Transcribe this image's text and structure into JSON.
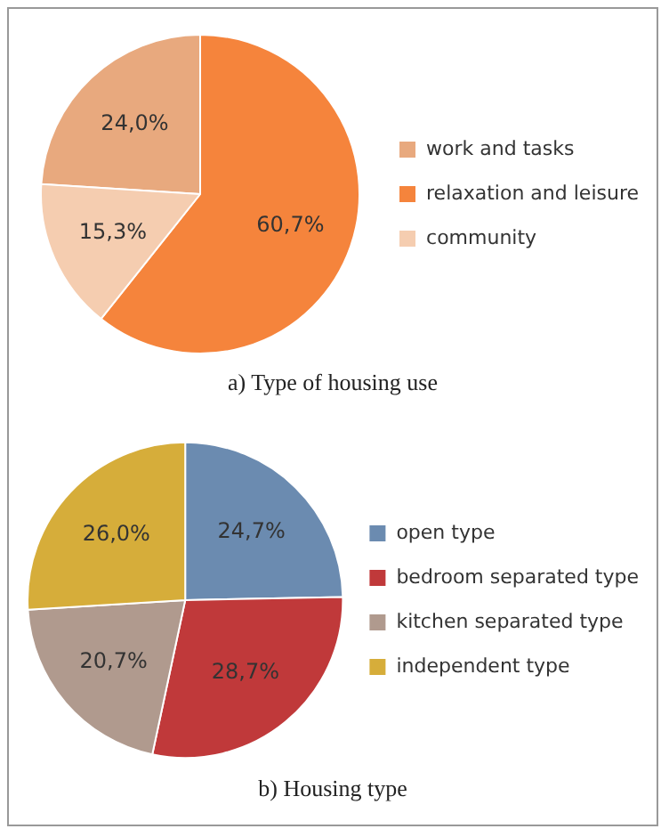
{
  "chart_data": [
    {
      "type": "pie",
      "title": "a) Type of housing use",
      "categories": [
        "work and tasks",
        "relaxation and leisure",
        "community"
      ],
      "values": [
        24.0,
        60.7,
        15.3
      ],
      "colors": [
        "#e8a97e",
        "#f5843c",
        "#f5cdb0"
      ],
      "value_labels": [
        "24,0%",
        "60,7%",
        "15,3%"
      ],
      "legend": "right"
    },
    {
      "type": "pie",
      "title": "b) Housing type",
      "categories": [
        "open type",
        "bedroom separated type",
        "kitchen separated type",
        "independent type"
      ],
      "values": [
        24.7,
        28.7,
        20.7,
        26.0
      ],
      "colors": [
        "#6b8bb0",
        "#c0393a",
        "#b09a8e",
        "#d6ad3a"
      ],
      "value_labels": [
        "24,7%",
        "28,7%",
        "20,7%",
        "26,0%"
      ],
      "legend": "right"
    }
  ]
}
